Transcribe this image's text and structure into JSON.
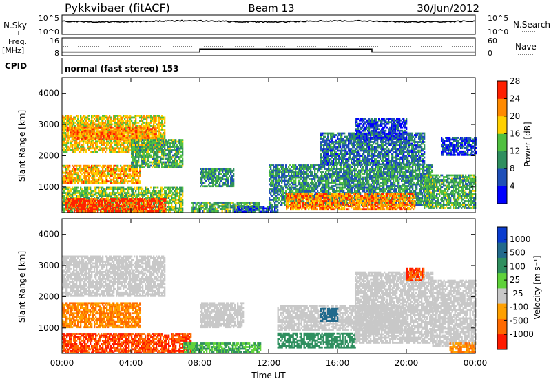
{
  "header": {
    "station": "Pykkvibaer (fitACF)",
    "beam": "Beam 13",
    "date": "30/Jun/2012"
  },
  "strip_panels": {
    "sky_label": "N.Sky",
    "sky_ticks": [
      "10^5",
      "10^0"
    ],
    "search_label": "N.Search",
    "search_ticks": [
      "10^5",
      "10^0"
    ],
    "freq_label_top": "Freq.",
    "freq_label_unit": "[MHz]",
    "freq_ticks": [
      "16",
      "8"
    ],
    "nave_label": "Nave",
    "nave_ticks": [
      "60",
      "0"
    ],
    "cpid_label": "CPID",
    "cpid_text": "normal (fast stereo) 153"
  },
  "x_axis": {
    "title": "Time UT",
    "ticks": [
      "00:00",
      "04:00",
      "08:00",
      "12:00",
      "16:00",
      "20:00",
      "00:00"
    ]
  },
  "power_panel": {
    "ylabel": "Slant Range [km]",
    "yticks": [
      "1000",
      "2000",
      "3000",
      "4000"
    ],
    "colorbar_label": "Power [dB]",
    "colorbar_ticks": [
      "4",
      "8",
      "12",
      "16",
      "20",
      "24",
      "28"
    ],
    "colors": [
      "#0000ff",
      "#1f4fb8",
      "#2f8f5f",
      "#50c040",
      "#ffd000",
      "#ff8a00",
      "#ff2000"
    ]
  },
  "velocity_panel": {
    "ylabel": "Slant Range [km]",
    "yticks": [
      "1000",
      "2000",
      "3000",
      "4000"
    ],
    "colorbar_label": "Velocity [m s⁻¹]",
    "colorbar_ticks": [
      "1000",
      "500",
      "100",
      "25",
      "-25",
      "-100",
      "-500",
      "-1000"
    ],
    "colors": [
      "#0a3ccf",
      "#226a8c",
      "#2f8f5f",
      "#5fd23a",
      "#c8c8c8",
      "#ffa000",
      "#ff6a00",
      "#ff1a00"
    ]
  },
  "chart_data": {
    "type": "heatmap",
    "x_units": "hours UT",
    "x_range": [
      0,
      24
    ],
    "y_units": "km",
    "y_range": [
      180,
      4500
    ],
    "power": [
      {
        "t": [
          0.0,
          6.0
        ],
        "r": [
          2100,
          3300
        ],
        "v": 18
      },
      {
        "t": [
          0.3,
          5.5
        ],
        "r": [
          2500,
          2900
        ],
        "v": 22
      },
      {
        "t": [
          0.0,
          4.5
        ],
        "r": [
          1100,
          1700
        ],
        "v": 20
      },
      {
        "t": [
          0.0,
          7.0
        ],
        "r": [
          180,
          1000
        ],
        "v": 14
      },
      {
        "t": [
          0.2,
          6.0
        ],
        "r": [
          200,
          600
        ],
        "v": 26
      },
      {
        "t": [
          4.0,
          7.0
        ],
        "r": [
          1600,
          2500
        ],
        "v": 12
      },
      {
        "t": [
          7.5,
          11.5
        ],
        "r": [
          200,
          500
        ],
        "v": 12
      },
      {
        "t": [
          8.0,
          10.0
        ],
        "r": [
          1000,
          1600
        ],
        "v": 10
      },
      {
        "t": [
          10.0,
          12.5
        ],
        "r": [
          180,
          400
        ],
        "v": 6
      },
      {
        "t": [
          12.0,
          21.5
        ],
        "r": [
          400,
          1700
        ],
        "v": 10
      },
      {
        "t": [
          13.0,
          20.5
        ],
        "r": [
          250,
          800
        ],
        "v": 22
      },
      {
        "t": [
          15.0,
          21.0
        ],
        "r": [
          1700,
          2700
        ],
        "v": 8
      },
      {
        "t": [
          17.0,
          20.0
        ],
        "r": [
          2500,
          3200
        ],
        "v": 5
      },
      {
        "t": [
          21.0,
          24.0
        ],
        "r": [
          300,
          1400
        ],
        "v": 12
      },
      {
        "t": [
          22.0,
          24.0
        ],
        "r": [
          2000,
          2600
        ],
        "v": 5
      }
    ],
    "velocity": [
      {
        "t": [
          0.0,
          6.0
        ],
        "r": [
          2000,
          3300
        ],
        "v": 0
      },
      {
        "t": [
          0.0,
          4.5
        ],
        "r": [
          1000,
          1800
        ],
        "v": -100
      },
      {
        "t": [
          0.0,
          7.5
        ],
        "r": [
          180,
          800
        ],
        "v": -500
      },
      {
        "t": [
          7.0,
          11.5
        ],
        "r": [
          200,
          500
        ],
        "v": 100
      },
      {
        "t": [
          8.0,
          10.5
        ],
        "r": [
          1000,
          1800
        ],
        "v": 0
      },
      {
        "t": [
          12.5,
          17.0
        ],
        "r": [
          350,
          800
        ],
        "v": 300
      },
      {
        "t": [
          12.5,
          20.0
        ],
        "r": [
          900,
          1700
        ],
        "v": 0
      },
      {
        "t": [
          15.0,
          16.0
        ],
        "r": [
          1200,
          1600
        ],
        "v": 600
      },
      {
        "t": [
          17.0,
          21.5
        ],
        "r": [
          500,
          2800
        ],
        "v": 0
      },
      {
        "t": [
          20.0,
          21.0
        ],
        "r": [
          2500,
          2900
        ],
        "v": -500
      },
      {
        "t": [
          21.5,
          24.0
        ],
        "r": [
          400,
          2500
        ],
        "v": 0
      },
      {
        "t": [
          22.5,
          24.0
        ],
        "r": [
          200,
          500
        ],
        "v": -100
      }
    ],
    "frequency": [
      {
        "t": [
          0.0,
          8.0
        ],
        "v": 9.5
      },
      {
        "t": [
          8.0,
          18.0
        ],
        "v": 11
      },
      {
        "t": [
          18.0,
          24.0
        ],
        "v": 9.5
      }
    ]
  }
}
